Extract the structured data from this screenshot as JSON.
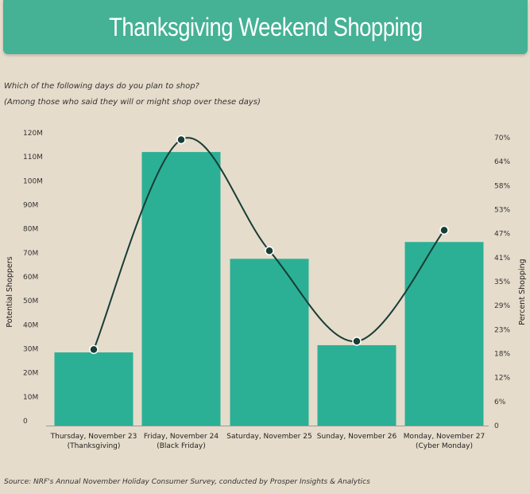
{
  "header": {
    "title": "Thanksgiving Weekend Shopping"
  },
  "question": {
    "line1": "Which of the following days do you plan to shop?",
    "line2": "(Among those who said they will or might shop over these days)"
  },
  "source": "Source:  NRF's Annual November Holiday Consumer Survey, conducted by Prosper Insights & Analytics",
  "colors": {
    "bar": "#2bb095",
    "line": "#173d36",
    "background": "#e6dccb"
  },
  "chart_data": {
    "type": "bar",
    "categories": [
      [
        "Thursday, November 23",
        "(Thanksgiving)"
      ],
      [
        "Friday, November 24",
        "(Black Friday)"
      ],
      [
        "Saturday, November 25",
        ""
      ],
      [
        "Sunday, November 26",
        ""
      ],
      [
        "Monday, November 27",
        "(Cyber Monday)"
      ]
    ],
    "series": [
      {
        "type": "bar",
        "axis": "left",
        "values": [
          30.5,
          114,
          69.5,
          33.5,
          76.5
        ]
      },
      {
        "type": "line",
        "axis": "right",
        "values": [
          18.5,
          69.5,
          42.5,
          20.5,
          47.5
        ]
      }
    ],
    "ylabel": "Potential Shoppers",
    "y2label": "Percent Shopping",
    "ylim": [
      0,
      120
    ],
    "y2lim": [
      0,
      70
    ],
    "yticks": [
      "0",
      "10M",
      "20M",
      "30M",
      "40M",
      "50M",
      "60M",
      "70M",
      "80M",
      "90M",
      "100M",
      "110M",
      "120M"
    ],
    "y2ticks": [
      "0",
      "6%",
      "12%",
      "18%",
      "23%",
      "29%",
      "35%",
      "41%",
      "47%",
      "53%",
      "58%",
      "64%",
      "70%"
    ],
    "grid": false,
    "legend": "none"
  }
}
